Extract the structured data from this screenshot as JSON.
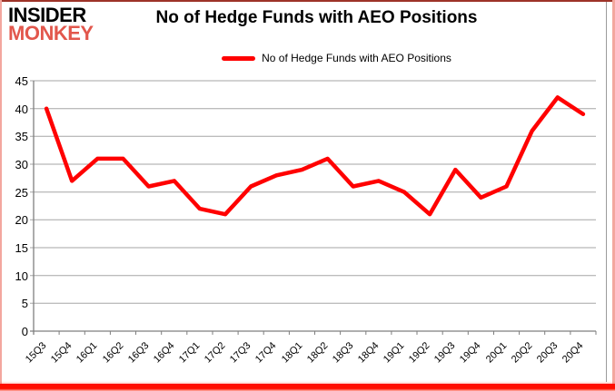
{
  "logo": {
    "line1": "INSIDER",
    "line2": "MONKEY"
  },
  "header": {
    "title": "No of Hedge Funds with AEO Positions"
  },
  "legend": {
    "label": "No of Hedge Funds with AEO Positions"
  },
  "colors": {
    "line": "#ff0000",
    "logo_black": "#000000",
    "logo_red": "#e2574c",
    "gridline": "#a6a6a6",
    "axis": "#7f7f7f",
    "text": "#000000",
    "border_side": "#f3a79f",
    "border_top": "#9d3328",
    "border_bottom": "#ff0e00"
  },
  "chart_data": {
    "type": "line",
    "title": "No of Hedge Funds with AEO Positions",
    "categories": [
      "15Q3",
      "15Q4",
      "16Q1",
      "16Q2",
      "16Q3",
      "16Q4",
      "17Q1",
      "17Q2",
      "17Q3",
      "17Q4",
      "18Q1",
      "18Q2",
      "18Q3",
      "18Q4",
      "19Q1",
      "19Q2",
      "19Q3",
      "19Q4",
      "20Q1",
      "20Q2",
      "20Q3",
      "20Q4"
    ],
    "series": [
      {
        "name": "No of Hedge Funds with AEO Positions",
        "color": "#ff0000",
        "values": [
          40,
          27,
          31,
          31,
          26,
          27,
          22,
          21,
          26,
          28,
          29,
          31,
          26,
          27,
          25,
          21,
          29,
          24,
          26,
          36,
          42,
          39
        ]
      }
    ],
    "xlabel": "",
    "ylabel": "",
    "ylim": [
      0,
      45
    ],
    "ytick_step": 5,
    "y_tick_labels": [
      "0",
      "5",
      "10",
      "15",
      "20",
      "25",
      "30",
      "35",
      "40",
      "45"
    ],
    "grid": true,
    "legend_position": "top"
  }
}
